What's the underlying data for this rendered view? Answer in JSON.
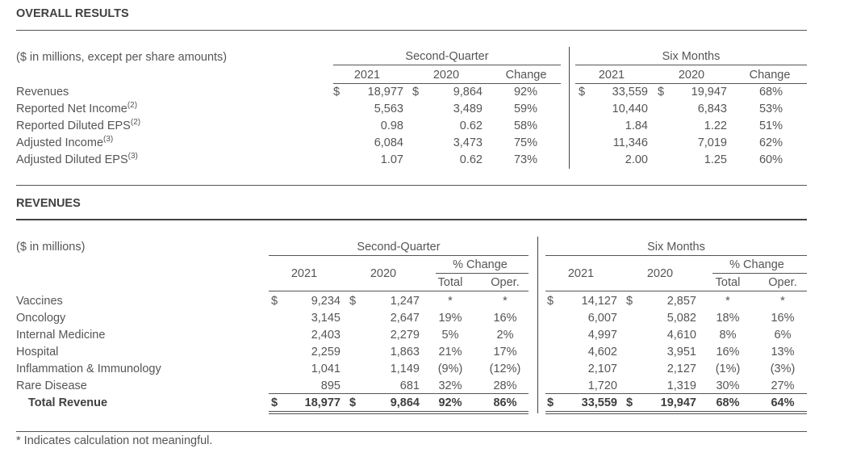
{
  "overall": {
    "title": "OVERALL RESULTS",
    "unit_note": "($ in millions, except per share amounts)",
    "group_q": "Second-Quarter",
    "group_s": "Six Months",
    "col_2021": "2021",
    "col_2020": "2020",
    "col_change": "Change",
    "dollar": "$",
    "rows": [
      {
        "label": "Revenues",
        "sup": "",
        "q21": "18,977",
        "q20": "9,864",
        "qch": "92%",
        "s21": "33,559",
        "s20": "19,947",
        "sch": "68%"
      },
      {
        "label": "Reported Net Income",
        "sup": "(2)",
        "q21": "5,563",
        "q20": "3,489",
        "qch": "59%",
        "s21": "10,440",
        "s20": "6,843",
        "sch": "53%"
      },
      {
        "label": "Reported Diluted EPS",
        "sup": "(2)",
        "q21": "0.98",
        "q20": "0.62",
        "qch": "58%",
        "s21": "1.84",
        "s20": "1.22",
        "sch": "51%"
      },
      {
        "label": "Adjusted Income",
        "sup": "(3)",
        "q21": "6,084",
        "q20": "3,473",
        "qch": "75%",
        "s21": "11,346",
        "s20": "7,019",
        "sch": "62%"
      },
      {
        "label": "Adjusted Diluted EPS",
        "sup": "(3)",
        "q21": "1.07",
        "q20": "0.62",
        "qch": "73%",
        "s21": "2.00",
        "s20": "1.25",
        "sch": "60%"
      }
    ]
  },
  "revenues": {
    "title": "REVENUES",
    "unit_note": "($ in millions)",
    "group_q": "Second-Quarter",
    "group_s": "Six Months",
    "col_2021": "2021",
    "col_2020": "2020",
    "pct_change": "% Change",
    "total": "Total",
    "oper": "Oper.",
    "dollar": "$",
    "rows": [
      {
        "label": "Vaccines",
        "q21": "9,234",
        "q20": "1,247",
        "qt": "*",
        "qo": "*",
        "s21": "14,127",
        "s20": "2,857",
        "st": "*",
        "so": "*"
      },
      {
        "label": "Oncology",
        "q21": "3,145",
        "q20": "2,647",
        "qt": "19%",
        "qo": "16%",
        "s21": "6,007",
        "s20": "5,082",
        "st": "18%",
        "so": "16%"
      },
      {
        "label": "Internal Medicine",
        "q21": "2,403",
        "q20": "2,279",
        "qt": "5%",
        "qo": "2%",
        "s21": "4,997",
        "s20": "4,610",
        "st": "8%",
        "so": "6%"
      },
      {
        "label": "Hospital",
        "q21": "2,259",
        "q20": "1,863",
        "qt": "21%",
        "qo": "17%",
        "s21": "4,602",
        "s20": "3,951",
        "st": "16%",
        "so": "13%"
      },
      {
        "label": "Inflammation & Immunology",
        "q21": "1,041",
        "q20": "1,149",
        "qt": "(9%)",
        "qo": "(12%)",
        "s21": "2,107",
        "s20": "2,127",
        "st": "(1%)",
        "so": "(3%)"
      },
      {
        "label": "Rare Disease",
        "q21": "895",
        "q20": "681",
        "qt": "32%",
        "qo": "28%",
        "s21": "1,720",
        "s20": "1,319",
        "st": "30%",
        "so": "27%"
      }
    ],
    "total_row": {
      "label": "Total Revenue",
      "q21": "18,977",
      "q20": "9,864",
      "qt": "92%",
      "qo": "86%",
      "s21": "33,559",
      "s20": "19,947",
      "st": "68%",
      "so": "64%"
    }
  },
  "footnote": "* Indicates calculation not meaningful."
}
